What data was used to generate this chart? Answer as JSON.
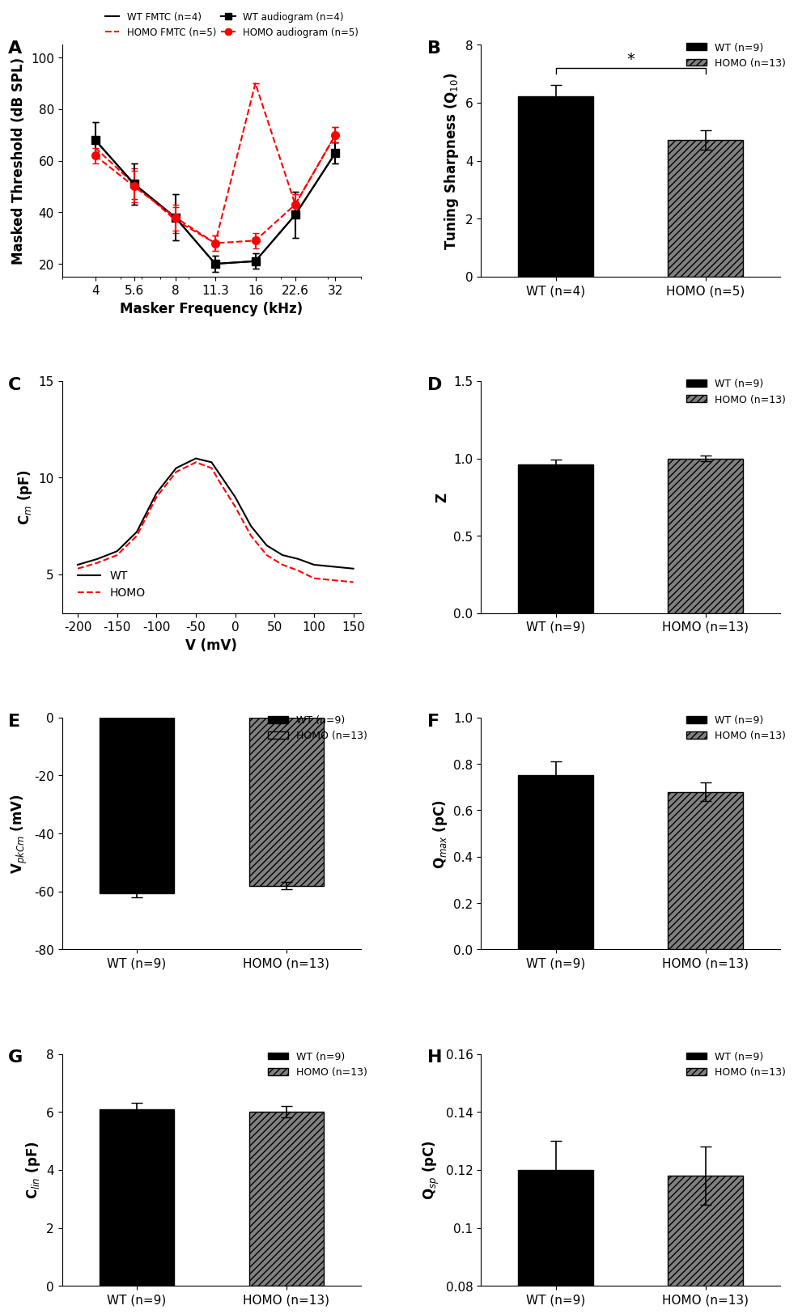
{
  "panel_A": {
    "wt_fmtc_x": [
      4,
      5.6,
      8,
      11.3,
      16,
      22.6,
      32
    ],
    "wt_fmtc_y": [
      68,
      51,
      38,
      20,
      21,
      39,
      63
    ],
    "wt_fmtc_yerr": [
      7,
      8,
      9,
      3,
      3,
      9,
      4
    ],
    "homo_fmtc_x": [
      4,
      5.6,
      8,
      11.3,
      16,
      22.6,
      32
    ],
    "homo_fmtc_y": [
      65,
      51,
      37,
      28,
      90,
      43,
      70
    ],
    "homo_fmtc_yerr": [
      3,
      6,
      5,
      3,
      0,
      4,
      3
    ],
    "wt_audio_x": [
      4,
      5.6,
      8,
      11.3,
      16,
      22.6,
      32
    ],
    "wt_audio_y": [
      68,
      51,
      38,
      20,
      21,
      39,
      63
    ],
    "wt_audio_yerr": [
      7,
      8,
      9,
      3,
      3,
      9,
      4
    ],
    "homo_audio_x": [
      4,
      5.6,
      8,
      11.3,
      16,
      22.6,
      32
    ],
    "homo_audio_y": [
      62,
      50,
      38,
      28,
      29,
      43,
      70
    ],
    "homo_audio_yerr": [
      3,
      6,
      5,
      3,
      3,
      4,
      3
    ],
    "ylabel": "Masked Threshold (dB SPL)",
    "xlabel": "Masker Frequency (kHz)",
    "ylim": [
      15,
      105
    ],
    "yticks": [
      20,
      40,
      60,
      80,
      100
    ],
    "xtick_labels": [
      "4",
      "5.6",
      "8",
      "11.3",
      "16",
      "22.6",
      "32"
    ],
    "legend_entries": [
      "WT FMTC (n=4)",
      "HOMO FMTC (n=5)",
      "WT audiogram (n=4)",
      "HOMO audiogram (n=5)"
    ]
  },
  "panel_B": {
    "categories": [
      "WT (n=4)",
      "HOMO (n=5)"
    ],
    "values": [
      6.228,
      4.712
    ],
    "errors": [
      0.3705,
      0.3353
    ],
    "ylabel": "Tuning Sharpness (Q$_{10}$)",
    "ylim": [
      0,
      8
    ],
    "yticks": [
      0,
      2,
      4,
      6,
      8
    ],
    "sig_label": "*",
    "bar_colors": [
      "#000000",
      "#808080"
    ],
    "hatch": [
      null,
      "////"
    ]
  },
  "panel_C": {
    "wt_x": [
      -200,
      -175,
      -150,
      -125,
      -100,
      -75,
      -50,
      -30,
      -20,
      0,
      20,
      40,
      60,
      80,
      100,
      125,
      150
    ],
    "wt_y": [
      5.5,
      5.8,
      6.2,
      7.2,
      9.2,
      10.5,
      11.0,
      10.8,
      10.2,
      9.0,
      7.5,
      6.5,
      6.0,
      5.8,
      5.5,
      5.4,
      5.3
    ],
    "homo_x": [
      -200,
      -175,
      -150,
      -125,
      -100,
      -75,
      -50,
      -30,
      -20,
      0,
      20,
      40,
      60,
      80,
      100,
      125,
      150
    ],
    "homo_y": [
      5.3,
      5.6,
      6.0,
      7.0,
      9.0,
      10.3,
      10.8,
      10.5,
      9.8,
      8.5,
      7.0,
      6.0,
      5.5,
      5.2,
      4.8,
      4.7,
      4.6
    ],
    "ylabel": "C$_m$ (pF)",
    "xlabel": "V (mV)",
    "ylim": [
      3,
      15
    ],
    "yticks": [
      5,
      10,
      15
    ],
    "xlim": [
      -220,
      160
    ],
    "xticks": [
      -200,
      -150,
      -100,
      -50,
      0,
      50,
      100,
      150
    ],
    "legend_entries": [
      "WT",
      "HOMO"
    ]
  },
  "panel_D": {
    "categories": [
      "WT (n=9)",
      "HOMO (n=13)"
    ],
    "values": [
      0.96,
      1.0
    ],
    "errors": [
      0.03,
      0.02
    ],
    "ylabel": "Z",
    "ylim": [
      0,
      1.5
    ],
    "yticks": [
      0.0,
      0.5,
      1.0,
      1.5
    ],
    "bar_colors": [
      "#000000",
      "#808080"
    ],
    "hatch": [
      null,
      "////"
    ]
  },
  "panel_E": {
    "categories": [
      "WT (n=9)",
      "HOMO (n=13)"
    ],
    "values": [
      -60.5,
      -58.0
    ],
    "errors": [
      1.5,
      1.2
    ],
    "ylabel": "V$_{pkCm}$ (mV)",
    "ylim": [
      -80,
      0
    ],
    "yticks": [
      -80,
      -60,
      -40,
      -20,
      0
    ],
    "bar_colors": [
      "#000000",
      "#808080"
    ],
    "hatch": [
      null,
      "////"
    ]
  },
  "panel_F": {
    "categories": [
      "WT (n=9)",
      "HOMO (n=13)"
    ],
    "values": [
      0.75,
      0.68
    ],
    "errors": [
      0.06,
      0.04
    ],
    "ylabel": "Q$_{max}$ (pC)",
    "ylim": [
      0,
      1.0
    ],
    "yticks": [
      0.0,
      0.2,
      0.4,
      0.6,
      0.8,
      1.0
    ],
    "bar_colors": [
      "#000000",
      "#808080"
    ],
    "hatch": [
      null,
      "////"
    ]
  },
  "panel_G": {
    "categories": [
      "WT (n=9)",
      "HOMO (n=13)"
    ],
    "values": [
      6.1,
      6.0
    ],
    "errors": [
      0.2,
      0.2
    ],
    "ylabel": "C$_{lin}$ (pF)",
    "ylim": [
      0,
      8
    ],
    "yticks": [
      0,
      2,
      4,
      6,
      8
    ],
    "bar_colors": [
      "#000000",
      "#808080"
    ],
    "hatch": [
      null,
      "////"
    ]
  },
  "panel_H": {
    "categories": [
      "WT (n=9)",
      "HOMO (n=13)"
    ],
    "values": [
      0.12,
      0.118
    ],
    "errors": [
      0.01,
      0.01
    ],
    "ylabel": "Q$_{sp}$ (pC)",
    "ylim": [
      0.08,
      0.16
    ],
    "yticks": [
      0.08,
      0.1,
      0.12,
      0.14,
      0.16
    ],
    "bar_colors": [
      "#000000",
      "#808080"
    ],
    "hatch": [
      null,
      "////"
    ]
  },
  "figure_bg": "#ffffff",
  "label_fontsize": 14,
  "tick_fontsize": 11,
  "axis_label_fontsize": 12
}
